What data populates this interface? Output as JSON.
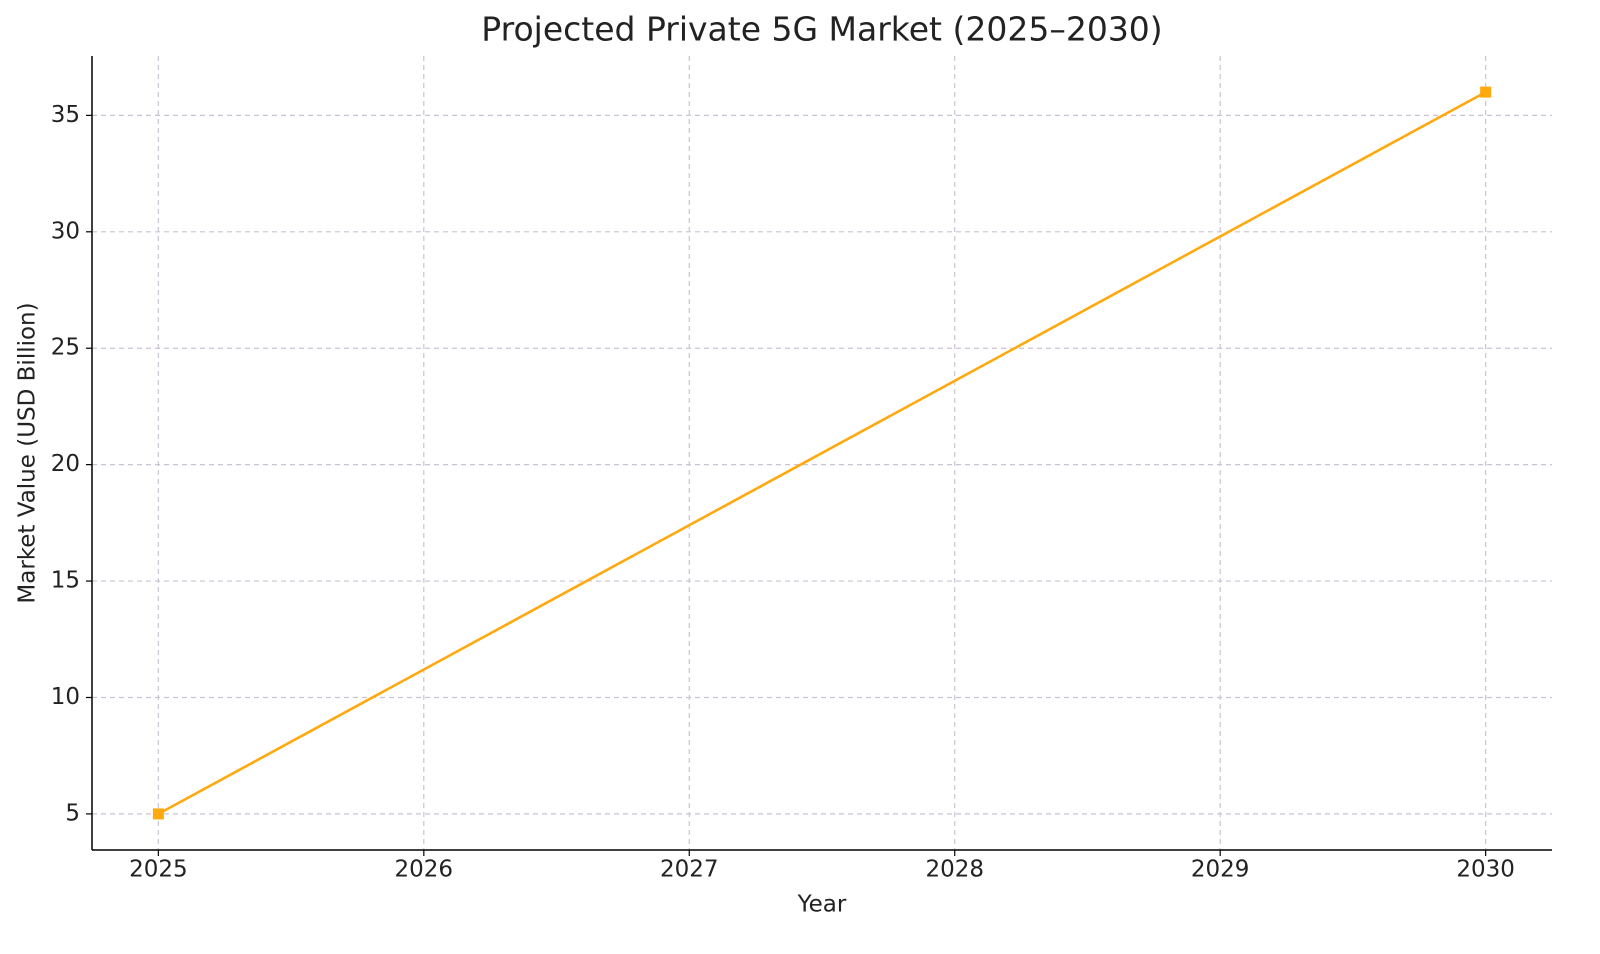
{
  "chart_data": {
    "type": "line",
    "title": "Projected Private 5G Market (2025–2030)",
    "xlabel": "Year",
    "ylabel": "Market Value (USD Billion)",
    "x": [
      2025,
      2030
    ],
    "values": [
      5,
      36
    ],
    "color": "#ffa90f",
    "marker": "square",
    "xlim": [
      2024.75,
      2030.25
    ],
    "xticks": [
      2025,
      2026,
      2027,
      2028,
      2029,
      2030
    ],
    "ylim": [
      3.45,
      37.55
    ],
    "yticks": [
      5,
      10,
      15,
      20,
      25,
      30,
      35
    ],
    "grid": true
  }
}
